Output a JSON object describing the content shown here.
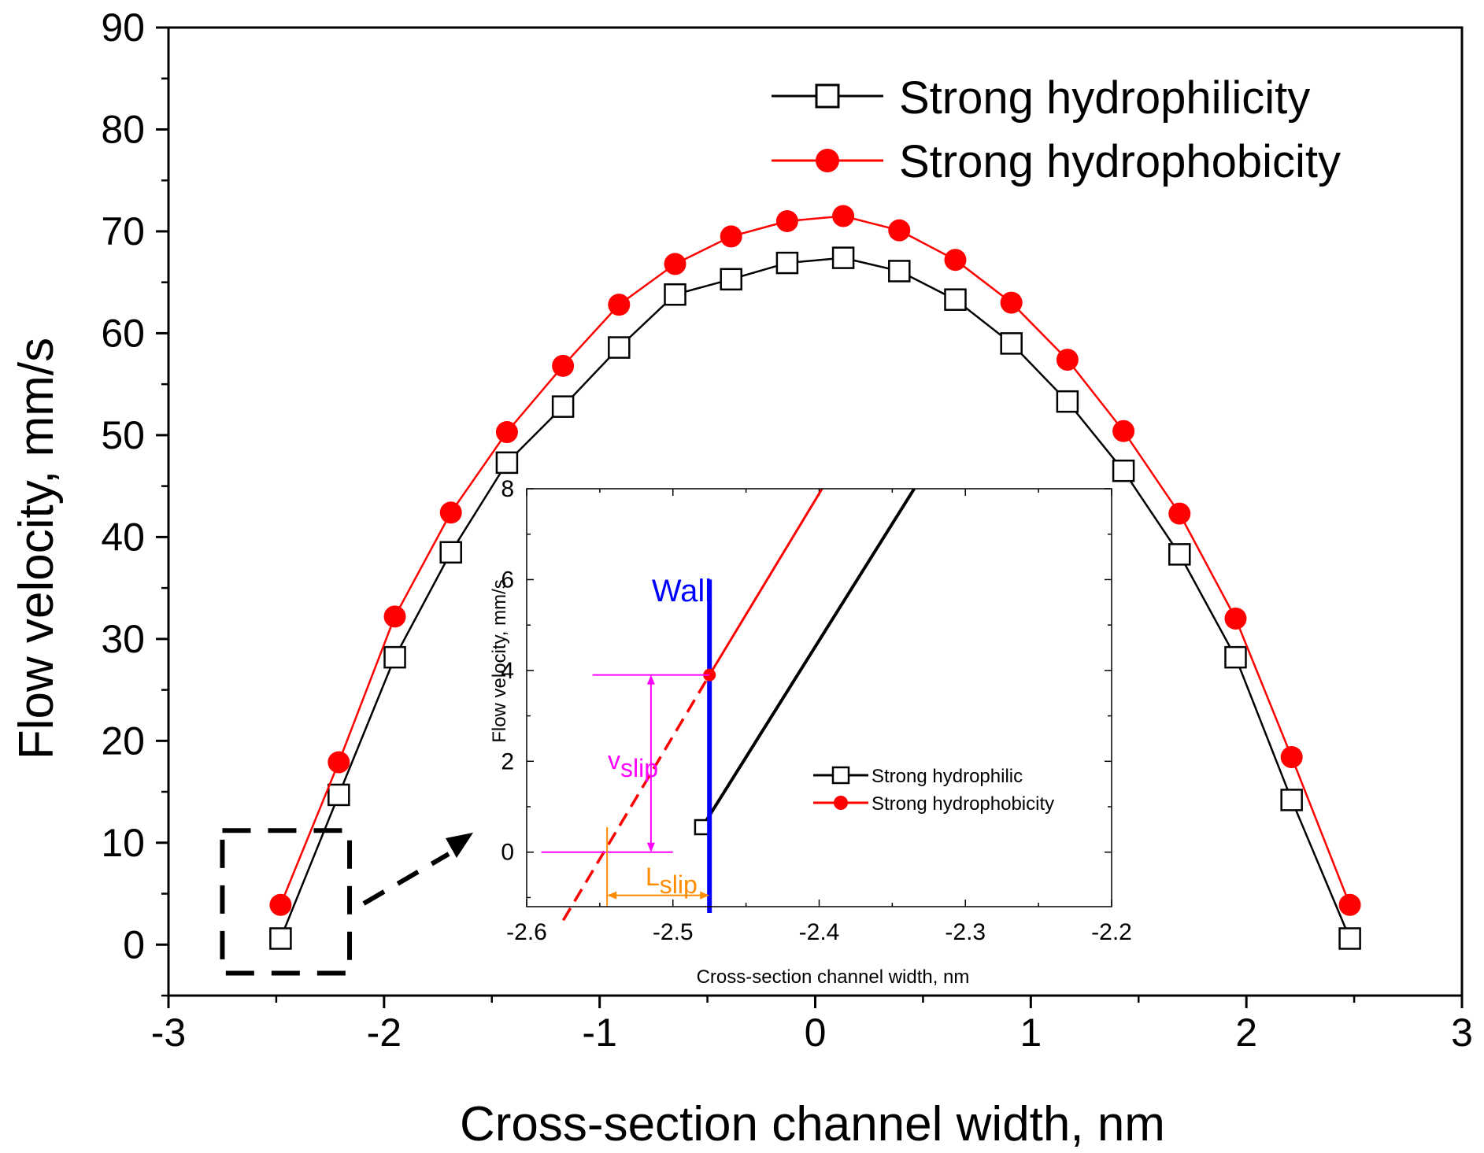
{
  "chart_data": [
    {
      "type": "line",
      "xlabel": "Cross-section channel width, nm",
      "ylabel": "Flow velocity, mm/s",
      "xlim": [
        -3,
        3
      ],
      "ylim": [
        -5,
        90
      ],
      "x_ticks": [
        "-3",
        "-2",
        "-1",
        "0",
        "1",
        "2",
        "3"
      ],
      "y_ticks": [
        "0",
        "10",
        "20",
        "30",
        "40",
        "50",
        "60",
        "70",
        "80",
        "90"
      ],
      "legend_position": "top-right",
      "series": [
        {
          "name": "Strong hydrophilicity",
          "color": "#000000",
          "marker": "open-square",
          "x": [
            -2.48,
            -2.21,
            -1.95,
            -1.69,
            -1.43,
            -1.17,
            -0.91,
            -0.65,
            -0.39,
            -0.13,
            0.13,
            0.39,
            0.65,
            0.91,
            1.17,
            1.43,
            1.69,
            1.95,
            2.21,
            2.48
          ],
          "y": [
            0.6,
            14.7,
            28.2,
            38.5,
            47.3,
            52.8,
            58.6,
            63.8,
            65.3,
            66.9,
            67.4,
            66.1,
            63.3,
            59.0,
            53.3,
            46.5,
            38.3,
            28.2,
            14.2,
            0.6
          ]
        },
        {
          "name": "Strong hydrophobicity",
          "color": "#ff0000",
          "marker": "filled-circle",
          "x": [
            -2.48,
            -2.21,
            -1.95,
            -1.69,
            -1.43,
            -1.17,
            -0.91,
            -0.65,
            -0.39,
            -0.13,
            0.13,
            0.39,
            0.65,
            0.91,
            1.17,
            1.43,
            1.69,
            1.95,
            2.21,
            2.48
          ],
          "y": [
            3.9,
            17.9,
            32.2,
            42.4,
            50.3,
            56.8,
            62.8,
            66.8,
            69.5,
            71.0,
            71.5,
            70.1,
            67.2,
            63.0,
            57.4,
            50.4,
            42.3,
            32.0,
            18.4,
            3.9
          ]
        }
      ]
    },
    {
      "type": "line",
      "inset": true,
      "xlabel": "Cross-section channel width,  nm",
      "ylabel": "Flow velocity, mm/s",
      "xlim": [
        -2.6,
        -2.2
      ],
      "ylim": [
        -1.2,
        8
      ],
      "x_ticks": [
        "-2.6",
        "-2.5",
        "-2.4",
        "-2.3",
        "-2.2"
      ],
      "y_ticks": [
        "0",
        "2",
        "4",
        "6",
        "8"
      ],
      "legend_position": "lower-right",
      "wall_label": "Wall",
      "wall_x": -2.475,
      "wall_y_range": [
        -1.2,
        6
      ],
      "vslip_main": "v",
      "vslip_sub": "slip",
      "lslip_main": "L",
      "lslip_sub": "slip",
      "vslip_value": 3.9,
      "lslip_x_range": [
        -2.545,
        -2.475
      ],
      "series": [
        {
          "name": "Strong hydrophilic",
          "color": "#000000",
          "marker": "open-square",
          "x": [
            -2.48,
            -2.335
          ],
          "y": [
            0.55,
            8
          ]
        },
        {
          "name": "Strong hydrophobicity",
          "color": "#ff0000",
          "marker": "filled-circle",
          "x": [
            -2.475,
            -2.398
          ],
          "y": [
            3.9,
            8
          ],
          "marker_x": -2.475,
          "marker_y": 3.9,
          "extrapolated": {
            "x": [
              -2.575,
              -2.475
            ],
            "y": [
              -1.5,
              3.9
            ]
          }
        }
      ]
    }
  ],
  "annotations": {
    "zoom_box_x": [
      -2.75,
      -2.16
    ],
    "zoom_box_y": [
      -2.8,
      11.2
    ]
  }
}
